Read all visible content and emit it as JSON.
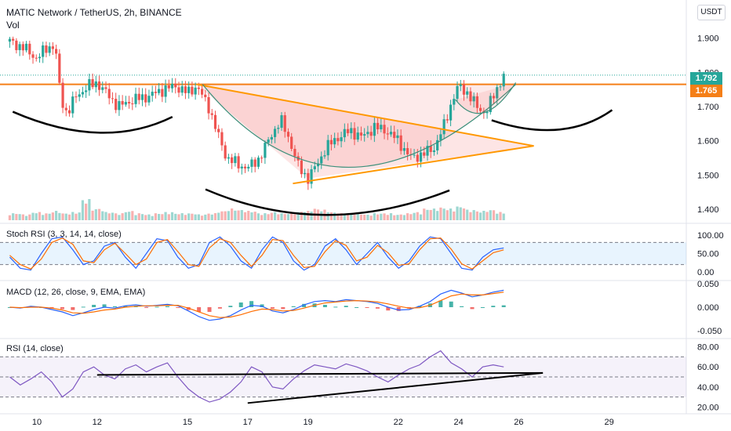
{
  "header": {
    "title": "MATIC Network / TetherUS, 2h, BINANCE",
    "volume_label": "Vol",
    "currency": "USDT"
  },
  "price_badges": [
    {
      "value": "1.792",
      "color": "#26a69a"
    },
    {
      "value": "1.765",
      "color": "#f57f17"
    }
  ],
  "colors": {
    "up": "#26a69a",
    "down": "#ef5350",
    "resistance": "#f57f17",
    "triangle": "#ff9800",
    "k_line": "#2962ff",
    "d_line": "#ff6d00",
    "rsi_line": "#7e57c2",
    "drawing": "#000000"
  },
  "chart_data": [
    {
      "type": "candlestick",
      "title": "MATIC Network / TetherUS, 2h, BINANCE",
      "x_ticks": [
        "10",
        "12",
        "15",
        "17",
        "19",
        "22",
        "24",
        "26",
        "29"
      ],
      "y_ticks": [
        "1.900",
        "1.800",
        "1.700",
        "1.600",
        "1.500",
        "1.400"
      ],
      "ylim": [
        1.37,
        1.92
      ],
      "last_price": 1.792,
      "resistance_level": 1.765,
      "price_path": [
        [
          9.1,
          1.89
        ],
        [
          9.6,
          1.87
        ],
        [
          10.0,
          1.84
        ],
        [
          10.3,
          1.87
        ],
        [
          10.6,
          1.88
        ],
        [
          10.8,
          1.72
        ],
        [
          11.0,
          1.68
        ],
        [
          11.3,
          1.73
        ],
        [
          11.7,
          1.76
        ],
        [
          12.0,
          1.77
        ],
        [
          12.3,
          1.74
        ],
        [
          12.7,
          1.7
        ],
        [
          13.2,
          1.72
        ],
        [
          13.7,
          1.73
        ],
        [
          14.2,
          1.75
        ],
        [
          14.6,
          1.76
        ],
        [
          15.0,
          1.74
        ],
        [
          15.3,
          1.76
        ],
        [
          15.7,
          1.7
        ],
        [
          16.0,
          1.62
        ],
        [
          16.3,
          1.55
        ],
        [
          16.7,
          1.53
        ],
        [
          17.0,
          1.52
        ],
        [
          17.4,
          1.55
        ],
        [
          17.8,
          1.62
        ],
        [
          18.1,
          1.66
        ],
        [
          18.4,
          1.6
        ],
        [
          18.7,
          1.52
        ],
        [
          19.0,
          1.49
        ],
        [
          19.3,
          1.53
        ],
        [
          19.6,
          1.58
        ],
        [
          20.0,
          1.61
        ],
        [
          20.4,
          1.63
        ],
        [
          20.8,
          1.61
        ],
        [
          21.2,
          1.64
        ],
        [
          21.6,
          1.63
        ],
        [
          22.0,
          1.6
        ],
        [
          22.4,
          1.55
        ],
        [
          22.8,
          1.56
        ],
        [
          23.2,
          1.58
        ],
        [
          23.5,
          1.64
        ],
        [
          23.8,
          1.72
        ],
        [
          24.0,
          1.76
        ],
        [
          24.3,
          1.74
        ],
        [
          24.6,
          1.7
        ],
        [
          24.9,
          1.68
        ],
        [
          25.2,
          1.74
        ],
        [
          25.5,
          1.79
        ]
      ]
    },
    {
      "type": "bar",
      "title": "Vol",
      "values": [
        0.3,
        0.25,
        0.35,
        0.3,
        0.4,
        0.3,
        0.35,
        0.9,
        0.5,
        0.35,
        0.3,
        0.4,
        0.3,
        0.25,
        0.3,
        0.35,
        0.3,
        0.3,
        0.25,
        0.3,
        0.4,
        0.5,
        0.45,
        0.4,
        0.3,
        0.35,
        0.3,
        0.35,
        0.4,
        0.5,
        0.45,
        0.35,
        0.3,
        0.3,
        0.25,
        0.3,
        0.3,
        0.25,
        0.3,
        0.35,
        0.5,
        0.55,
        0.5,
        0.6,
        0.45,
        0.4,
        0.45,
        0.35
      ]
    },
    {
      "type": "line",
      "title": "Stoch RSI (3, 3, 14, 14, close)",
      "y_ticks": [
        "100.00",
        "50.00",
        "0.00"
      ],
      "ylim": [
        0,
        100
      ],
      "bands": [
        20,
        80
      ],
      "series": [
        {
          "values": [
            40,
            10,
            5,
            50,
            90,
            95,
            60,
            20,
            30,
            70,
            80,
            40,
            10,
            50,
            90,
            85,
            40,
            10,
            20,
            80,
            95,
            70,
            30,
            10,
            60,
            95,
            80,
            30,
            5,
            20,
            70,
            90,
            60,
            20,
            50,
            80,
            40,
            10,
            30,
            70,
            95,
            90,
            50,
            10,
            5,
            40,
            60,
            65
          ]
        },
        {
          "values": [
            45,
            20,
            8,
            35,
            80,
            92,
            75,
            30,
            25,
            60,
            78,
            50,
            20,
            35,
            80,
            88,
            55,
            20,
            15,
            65,
            90,
            80,
            45,
            15,
            45,
            88,
            85,
            45,
            12,
            15,
            55,
            85,
            72,
            30,
            40,
            72,
            52,
            18,
            22,
            60,
            90,
            92,
            62,
            22,
            8,
            30,
            52,
            60
          ]
        }
      ]
    },
    {
      "type": "line",
      "title": "MACD (12, 26, close, 9, EMA, EMA)",
      "y_ticks": [
        "0.050",
        "0.000",
        "-0.050"
      ],
      "ylim": [
        -0.05,
        0.05
      ],
      "series": [
        {
          "values": [
            0.0,
            -0.002,
            0.002,
            0.0,
            -0.005,
            -0.01,
            -0.018,
            -0.012,
            -0.005,
            0.0,
            -0.002,
            0.003,
            0.005,
            0.002,
            0.004,
            0.006,
            0.003,
            -0.008,
            -0.02,
            -0.028,
            -0.025,
            -0.018,
            -0.006,
            0.004,
            0.002,
            -0.008,
            -0.012,
            -0.005,
            0.005,
            0.012,
            0.014,
            0.012,
            0.016,
            0.014,
            0.012,
            0.008,
            0.0,
            -0.006,
            -0.005,
            0.002,
            0.012,
            0.028,
            0.036,
            0.03,
            0.022,
            0.026,
            0.032,
            0.036
          ]
        },
        {
          "values": [
            0.0,
            -0.001,
            0.0,
            0.0,
            -0.002,
            -0.006,
            -0.012,
            -0.013,
            -0.01,
            -0.006,
            -0.004,
            0.0,
            0.002,
            0.003,
            0.003,
            0.004,
            0.004,
            -0.002,
            -0.01,
            -0.018,
            -0.022,
            -0.021,
            -0.016,
            -0.009,
            -0.004,
            -0.005,
            -0.008,
            -0.007,
            -0.002,
            0.004,
            0.009,
            0.011,
            0.013,
            0.014,
            0.013,
            0.011,
            0.007,
            0.002,
            -0.002,
            -0.001,
            0.004,
            0.014,
            0.024,
            0.028,
            0.026,
            0.026,
            0.029,
            0.032
          ]
        }
      ]
    },
    {
      "type": "line",
      "title": "RSI (14, close)",
      "y_ticks": [
        "80.00",
        "60.00",
        "40.00",
        "20.00"
      ],
      "ylim": [
        18,
        82
      ],
      "bands": [
        30,
        50,
        70
      ],
      "series": [
        {
          "values": [
            50,
            42,
            48,
            55,
            45,
            30,
            38,
            55,
            60,
            52,
            48,
            58,
            62,
            55,
            60,
            64,
            50,
            38,
            30,
            25,
            28,
            35,
            45,
            60,
            55,
            40,
            38,
            48,
            56,
            62,
            60,
            58,
            63,
            60,
            56,
            50,
            45,
            52,
            58,
            62,
            70,
            76,
            64,
            58,
            50,
            60,
            62,
            60
          ]
        }
      ]
    }
  ]
}
